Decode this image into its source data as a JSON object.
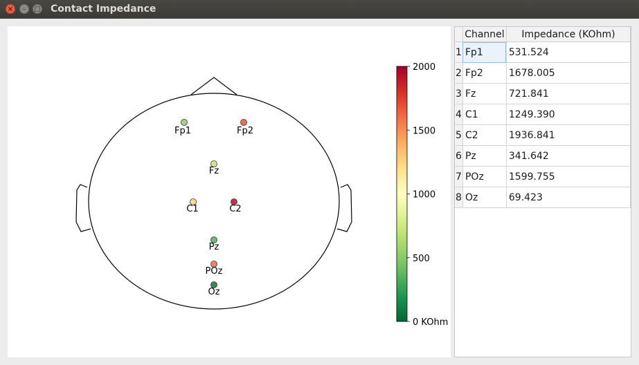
{
  "window": {
    "title": "Contact Impedance",
    "close_glyph": "×",
    "min_glyph": "–",
    "max_glyph": "□"
  },
  "colorbar": {
    "min": 0,
    "max": 2000,
    "unit": "KOhm",
    "ticks": [
      "0 KOhm",
      "500",
      "1000",
      "1500",
      "2000"
    ],
    "tick_values": [
      0,
      500,
      1000,
      1500,
      2000
    ],
    "colormap": "RdYlGn_r"
  },
  "table": {
    "headers": [
      "Channel",
      "Impedance (KOhm)"
    ],
    "rows": [
      {
        "num": "1",
        "channel": "Fp1",
        "impedance": "531.524"
      },
      {
        "num": "2",
        "channel": "Fp2",
        "impedance": "1678.005"
      },
      {
        "num": "3",
        "channel": "Fz",
        "impedance": "721.841"
      },
      {
        "num": "4",
        "channel": "C1",
        "impedance": "1249.390"
      },
      {
        "num": "5",
        "channel": "C2",
        "impedance": "1936.841"
      },
      {
        "num": "6",
        "channel": "Pz",
        "impedance": "341.642"
      },
      {
        "num": "7",
        "channel": "POz",
        "impedance": "1599.755"
      },
      {
        "num": "8",
        "channel": "Oz",
        "impedance": "69.423"
      }
    ]
  },
  "electrodes": [
    {
      "label": "Fp1",
      "value": 531.524
    },
    {
      "label": "Fp2",
      "value": 1678.005
    },
    {
      "label": "Fz",
      "value": 721.841
    },
    {
      "label": "C1",
      "value": 1249.39
    },
    {
      "label": "C2",
      "value": 1936.841
    },
    {
      "label": "Pz",
      "value": 341.642
    },
    {
      "label": "POz",
      "value": 1599.755
    },
    {
      "label": "Oz",
      "value": 69.423
    }
  ]
}
